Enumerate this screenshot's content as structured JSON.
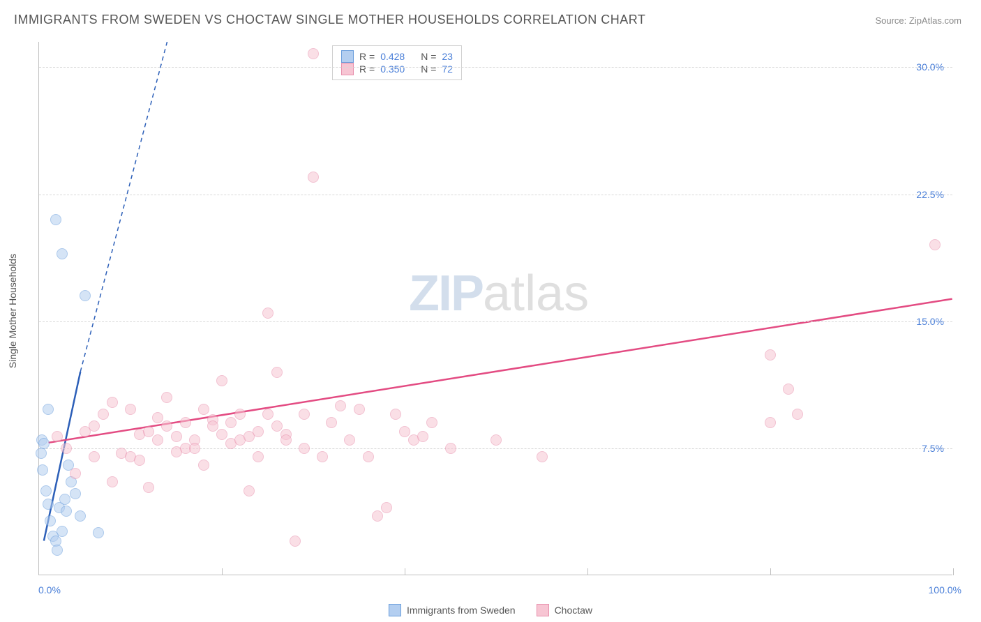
{
  "title": "IMMIGRANTS FROM SWEDEN VS CHOCTAW SINGLE MOTHER HOUSEHOLDS CORRELATION CHART",
  "source": "Source: ZipAtlas.com",
  "ylabel": "Single Mother Households",
  "watermark_zip": "ZIP",
  "watermark_atlas": "atlas",
  "legend_top": {
    "rows": [
      {
        "swatch_fill": "#b3cef0",
        "swatch_stroke": "#6a9edc",
        "r_label": "R =",
        "r_value": "0.428",
        "n_label": "N =",
        "n_value": "23"
      },
      {
        "swatch_fill": "#f7c5d3",
        "swatch_stroke": "#e890ad",
        "r_label": "R =",
        "r_value": "0.350",
        "n_label": "N =",
        "n_value": "72"
      }
    ]
  },
  "legend_bottom": {
    "items": [
      {
        "swatch_fill": "#b3cef0",
        "swatch_stroke": "#6a9edc",
        "label": "Immigrants from Sweden"
      },
      {
        "swatch_fill": "#f7c5d3",
        "swatch_stroke": "#e890ad",
        "label": "Choctaw"
      }
    ]
  },
  "chart": {
    "type": "scatter",
    "xlim": [
      0,
      100
    ],
    "ylim": [
      0,
      31.5
    ],
    "y_gridlines": [
      7.5,
      15.0,
      22.5,
      30.0
    ],
    "y_tick_labels": [
      "7.5%",
      "15.0%",
      "22.5%",
      "30.0%"
    ],
    "x_gridlines": [
      20,
      40,
      60,
      80,
      100
    ],
    "x_min_label": "0.0%",
    "x_max_label": "100.0%",
    "series": [
      {
        "name": "Immigrants from Sweden",
        "fill": "#b3cef0",
        "stroke": "#6a9edc",
        "fill_opacity": 0.55,
        "points": [
          [
            0.2,
            7.2
          ],
          [
            0.3,
            8.0
          ],
          [
            0.5,
            7.8
          ],
          [
            0.4,
            6.2
          ],
          [
            0.8,
            5.0
          ],
          [
            1.0,
            4.2
          ],
          [
            1.2,
            3.2
          ],
          [
            1.5,
            2.3
          ],
          [
            1.8,
            2.0
          ],
          [
            2.0,
            1.5
          ],
          [
            2.5,
            2.6
          ],
          [
            2.2,
            4.0
          ],
          [
            2.8,
            4.5
          ],
          [
            3.0,
            3.8
          ],
          [
            3.5,
            5.5
          ],
          [
            1.0,
            9.8
          ],
          [
            1.8,
            21.0
          ],
          [
            2.5,
            19.0
          ],
          [
            5.0,
            16.5
          ],
          [
            6.5,
            2.5
          ],
          [
            4.0,
            4.8
          ],
          [
            3.2,
            6.5
          ],
          [
            4.5,
            3.5
          ]
        ],
        "trend": {
          "solid": [
            [
              0.5,
              2.0
            ],
            [
              4.5,
              12.0
            ]
          ],
          "dashed": [
            [
              4.5,
              12.0
            ],
            [
              14.0,
              31.5
            ]
          ],
          "color": "#2c5fb8",
          "width": 2.5
        }
      },
      {
        "name": "Choctaw",
        "fill": "#f7c5d3",
        "stroke": "#e890ad",
        "fill_opacity": 0.55,
        "points": [
          [
            2,
            8.2
          ],
          [
            3,
            7.5
          ],
          [
            4,
            6.0
          ],
          [
            5,
            8.5
          ],
          [
            6,
            7.0
          ],
          [
            7,
            9.5
          ],
          [
            8,
            10.2
          ],
          [
            9,
            7.2
          ],
          [
            10,
            9.8
          ],
          [
            11,
            8.3
          ],
          [
            12,
            5.2
          ],
          [
            13,
            8.0
          ],
          [
            14,
            10.5
          ],
          [
            15,
            7.3
          ],
          [
            16,
            9.0
          ],
          [
            17,
            8.0
          ],
          [
            18,
            6.5
          ],
          [
            19,
            9.2
          ],
          [
            20,
            11.5
          ],
          [
            21,
            7.8
          ],
          [
            22,
            8.0
          ],
          [
            23,
            5.0
          ],
          [
            24,
            8.5
          ],
          [
            25,
            15.5
          ],
          [
            26,
            12.0
          ],
          [
            27,
            8.3
          ],
          [
            28,
            2.0
          ],
          [
            29,
            9.5
          ],
          [
            30,
            23.5
          ],
          [
            30,
            30.8
          ],
          [
            31,
            7.0
          ],
          [
            32,
            9.0
          ],
          [
            33,
            10.0
          ],
          [
            34,
            8.0
          ],
          [
            35,
            9.8
          ],
          [
            36,
            7.0
          ],
          [
            37,
            3.5
          ],
          [
            38,
            4.0
          ],
          [
            39,
            9.5
          ],
          [
            40,
            8.5
          ],
          [
            41,
            8.0
          ],
          [
            42,
            8.2
          ],
          [
            43,
            9.0
          ],
          [
            45,
            7.5
          ],
          [
            50,
            8.0
          ],
          [
            55,
            7.0
          ],
          [
            80,
            9.0
          ],
          [
            80,
            13.0
          ],
          [
            82,
            11.0
          ],
          [
            83,
            9.5
          ],
          [
            98,
            19.5
          ],
          [
            14,
            8.8
          ],
          [
            16,
            7.5
          ],
          [
            18,
            9.8
          ],
          [
            12,
            8.5
          ],
          [
            10,
            7.0
          ],
          [
            8,
            5.5
          ],
          [
            6,
            8.8
          ],
          [
            20,
            8.3
          ],
          [
            22,
            9.5
          ],
          [
            24,
            7.0
          ],
          [
            26,
            8.8
          ],
          [
            11,
            6.8
          ],
          [
            13,
            9.3
          ],
          [
            15,
            8.2
          ],
          [
            17,
            7.5
          ],
          [
            19,
            8.8
          ],
          [
            21,
            9.0
          ],
          [
            23,
            8.2
          ],
          [
            25,
            9.5
          ],
          [
            27,
            8.0
          ],
          [
            29,
            7.5
          ]
        ],
        "trend": {
          "solid": [
            [
              1,
              7.8
            ],
            [
              100,
              16.3
            ]
          ],
          "color": "#e34b82",
          "width": 2.5
        }
      }
    ]
  },
  "colors": {
    "value_text": "#4a7fd8",
    "label_text": "#555555"
  }
}
